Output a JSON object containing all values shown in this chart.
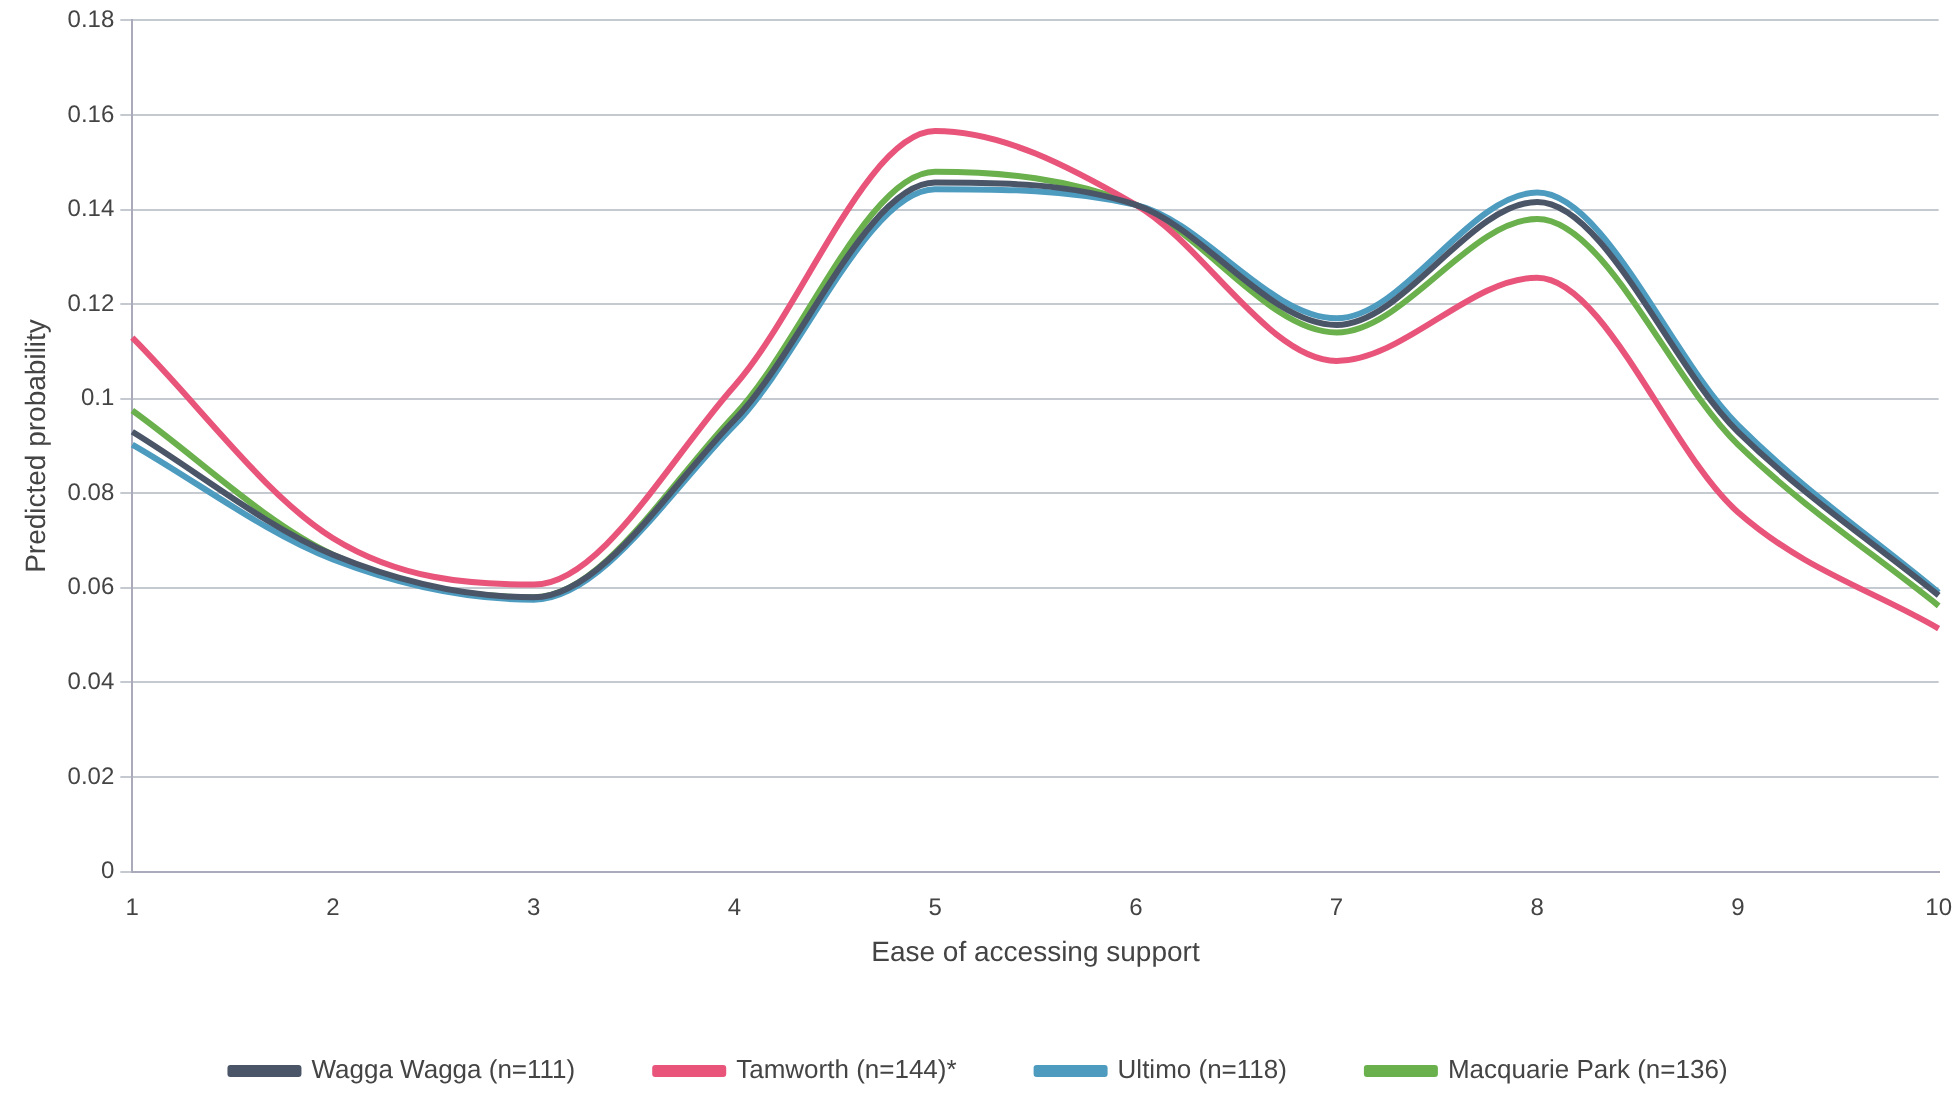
{
  "chart_data": {
    "type": "line",
    "xlabel": "Ease of accessing support",
    "ylabel": "Predicted probability",
    "categories": [
      "1",
      "2",
      "3",
      "4",
      "5",
      "6",
      "7",
      "8",
      "9",
      "10"
    ],
    "series": [
      {
        "name": "Wagga Wagga (n=111)",
        "color": "#4a5568",
        "values": [
          0.093,
          0.067,
          0.058,
          0.0955,
          0.1457,
          0.141,
          0.1156,
          0.1416,
          0.093,
          0.0584
        ]
      },
      {
        "name": "Tamworth (n=144)*",
        "color": "#e8547a",
        "values": [
          0.1129,
          0.0705,
          0.0607,
          0.1027,
          0.1566,
          0.141,
          0.108,
          0.1256,
          0.076,
          0.0514
        ]
      },
      {
        "name": "Ultimo (n=118)",
        "color": "#4d9bbf",
        "values": [
          0.0903,
          0.066,
          0.0575,
          0.0944,
          0.1443,
          0.141,
          0.117,
          0.1436,
          0.0944,
          0.059
        ]
      },
      {
        "name": "Macquarie Park (n=136)",
        "color": "#6ab04c",
        "values": [
          0.0975,
          0.067,
          0.058,
          0.0965,
          0.148,
          0.141,
          0.114,
          0.138,
          0.0903,
          0.0562
        ]
      }
    ],
    "ylim": [
      0,
      0.18
    ],
    "yticks": [
      0,
      0.02,
      0.04,
      0.06,
      0.08,
      0.1,
      0.12,
      0.14,
      0.16,
      0.18
    ],
    "grid": "y",
    "legend": "bottom",
    "marker": "none",
    "line_style": "solid"
  }
}
